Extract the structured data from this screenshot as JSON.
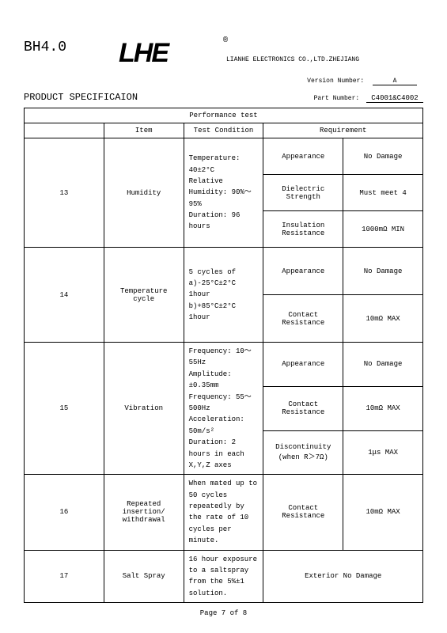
{
  "header": {
    "bh": "BH4.0",
    "logo": "LHE",
    "reg": "®",
    "company": "LIANHE ELECTRONICS CO.,LTD.ZHEJIANG"
  },
  "meta": {
    "version_label": "Version Number:",
    "version": "A",
    "title": "PRODUCT SPECIFICAION",
    "part_label": "Part Number:",
    "part": "C4001&C4002"
  },
  "table": {
    "title": "Performance test",
    "headers": {
      "item": "Item",
      "cond": "Test Condition",
      "req": "Requirement"
    },
    "rows": [
      {
        "no": "13",
        "item": "Humidity",
        "cond": "Temperature: 40±2°C\nRelative Humidity: 90%～95%\nDuration: 96 hours",
        "reqs": [
          {
            "k": "Appearance",
            "v": "No Damage"
          },
          {
            "k": "Dielectric\nStrength",
            "v": "Must meet 4"
          },
          {
            "k": "Insulation\nResistance",
            "v": "1000mΩ MIN"
          }
        ]
      },
      {
        "no": "14",
        "item": "Temperature\ncycle",
        "cond": "5 cycles of\na)-25°C±2°C  1hour\nb)+85°C±2°C  1hour",
        "reqs": [
          {
            "k": "Appearance",
            "v": "No Damage"
          },
          {
            "k": "Contact\nResistance",
            "v": "10mΩ MAX"
          }
        ]
      },
      {
        "no": "15",
        "item": "Vibration",
        "cond": "Frequency: 10～55Hz\nAmplitude: ±0.35mm\nFrequency: 55～500Hz\nAcceleration: 50m/s²\nDuration: 2 hours in each X,Y,Z axes",
        "reqs": [
          {
            "k": "Appearance",
            "v": "No Damage"
          },
          {
            "k": "Contact\nResistance",
            "v": "10mΩ MAX"
          },
          {
            "k": "Discontinuity\n(when R＞7Ω)",
            "v": "1μs  MAX"
          }
        ]
      },
      {
        "no": "16",
        "item": "Repeated\ninsertion/\nwithdrawal",
        "cond": "When mated up to 50 cycles repeatedly by the rate of 10 cycles per minute.",
        "reqs": [
          {
            "k": "Contact\nResistance",
            "v": "10mΩ MAX"
          }
        ]
      },
      {
        "no": "17",
        "item": "Salt Spray",
        "cond": "16 hour exposure to a saltspray from the 5%±1 solution.",
        "merged_req": "Exterior No Damage"
      }
    ]
  },
  "footer": "Page 7 of 8"
}
